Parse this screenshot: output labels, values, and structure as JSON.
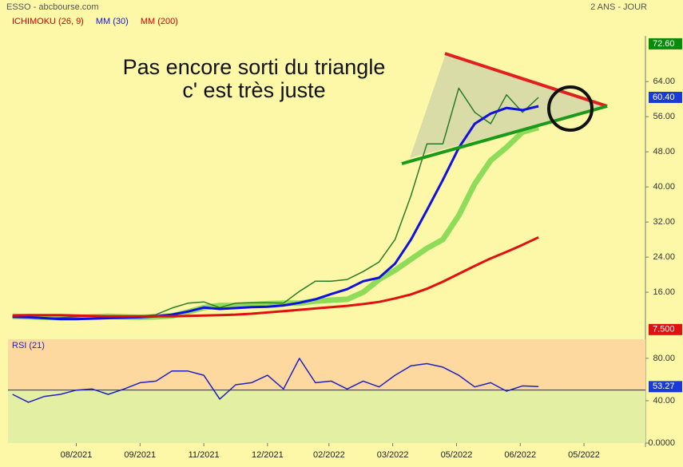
{
  "header": {
    "source": "ESSO - abcbourse.com",
    "period": "2 ANS - JOUR"
  },
  "annotations": [
    "Pas encore sorti du triangle",
    "c' est très juste"
  ],
  "chart_data": [
    {
      "type": "line",
      "x": [
        2,
        9,
        16,
        23,
        30,
        37,
        44,
        51,
        58,
        65,
        72,
        79,
        86,
        93,
        100,
        107,
        114,
        121,
        128,
        135,
        142,
        149,
        156,
        163,
        170,
        177,
        184,
        191,
        198,
        205,
        212,
        219,
        226,
        233
      ],
      "xlim": [
        0,
        280
      ],
      "ylim": [
        7.1,
        74.4
      ],
      "yticks": [
        {
          "value": 16,
          "label": "16.00"
        },
        {
          "value": 24,
          "label": "24.00"
        },
        {
          "value": 32,
          "label": "32.00"
        },
        {
          "value": 40,
          "label": "40.00"
        },
        {
          "value": 48,
          "label": "48.00"
        },
        {
          "value": 56,
          "label": "56.00"
        },
        {
          "value": 64,
          "label": "64.00"
        }
      ],
      "series": [
        {
          "name": "ICHIMOKU (26, 9)",
          "color": "#8fdc5a",
          "legend_color": "#d00000",
          "width": 7,
          "values": [
            10.5,
            10.4,
            10.3,
            10.2,
            10.2,
            10.4,
            10.5,
            10.4,
            10.3,
            10.4,
            10.6,
            11.5,
            12.5,
            13.0,
            13.0,
            13.2,
            13.4,
            13.5,
            13.5,
            14.0,
            14.2,
            14.4,
            16.0,
            18.9,
            21.0,
            23.5,
            26.0,
            28.0,
            33.5,
            40.7,
            46.0,
            49.0,
            52.5,
            53.5
          ]
        },
        {
          "color": "#2a7a2a",
          "width": 1.5,
          "values": [
            10.4,
            10.2,
            10.0,
            10.2,
            10.4,
            10.7,
            10.4,
            10.2,
            10.5,
            10.9,
            12.4,
            13.5,
            13.8,
            12.5,
            13.5,
            13.6,
            13.6,
            13.5,
            16.2,
            18.5,
            18.5,
            18.9,
            20.7,
            22.9,
            28.0,
            38.0,
            49.8,
            49.8,
            62.5,
            57.0,
            54.4,
            61.0,
            57.0,
            60.4
          ]
        },
        {
          "name": "MM (30)",
          "color": "#1010e0",
          "legend_color": "#1010e0",
          "width": 3,
          "values": [
            10.4,
            10.3,
            10.1,
            9.9,
            9.9,
            10.0,
            10.1,
            10.2,
            10.3,
            10.5,
            10.9,
            11.6,
            12.5,
            12.2,
            12.4,
            12.6,
            12.7,
            13.0,
            13.6,
            14.4,
            15.6,
            16.7,
            18.5,
            19.3,
            22.5,
            28.0,
            34.7,
            41.6,
            48.9,
            54.4,
            56.7,
            58.0,
            57.5,
            58.4
          ]
        },
        {
          "name": "MM (200)",
          "color": "#e01010",
          "legend_color": "#d00000",
          "width": 3,
          "values": [
            10.7,
            10.8,
            10.8,
            10.8,
            10.7,
            10.6,
            10.5,
            10.5,
            10.5,
            10.5,
            10.5,
            10.6,
            10.7,
            10.8,
            10.9,
            11.1,
            11.4,
            11.7,
            12.0,
            12.3,
            12.6,
            12.9,
            13.3,
            13.8,
            14.6,
            15.5,
            16.8,
            18.4,
            20.2,
            22.0,
            23.7,
            25.2,
            26.8,
            28.5
          ]
        }
      ],
      "markers": [
        {
          "value": 72.6,
          "label": "72.60",
          "color": "#0a8a0a"
        },
        {
          "value": 60.4,
          "label": "60.40",
          "color": "#1a3ad8"
        },
        {
          "value": 7.5,
          "label": "7.500",
          "color": "#e01010"
        }
      ]
    },
    {
      "type": "line",
      "x": [
        2,
        9,
        16,
        23,
        30,
        37,
        44,
        51,
        58,
        65,
        72,
        79,
        86,
        93,
        100,
        107,
        114,
        121,
        128,
        135,
        142,
        149,
        156,
        163,
        170,
        177,
        184,
        191,
        198,
        205,
        212,
        219,
        226,
        233
      ],
      "xlim": [
        0,
        280
      ],
      "xticks": [
        {
          "value": 30,
          "label": "08/2021"
        },
        {
          "value": 58,
          "label": "09/2021"
        },
        {
          "value": 86,
          "label": "11/2021"
        },
        {
          "value": 114,
          "label": "12/2021"
        },
        {
          "value": 141,
          "label": "02/2022"
        },
        {
          "value": 169,
          "label": "03/2022"
        },
        {
          "value": 197,
          "label": "05/2022"
        },
        {
          "value": 225,
          "label": "06/2022"
        },
        {
          "value": 253,
          "label": "05/2022"
        }
      ],
      "ylim": [
        0,
        98
      ],
      "yticks": [
        {
          "value": 0,
          "label": "0.0000"
        },
        {
          "value": 40,
          "label": "40.00"
        },
        {
          "value": 80,
          "label": "80.00"
        }
      ],
      "reference": 50,
      "series": [
        {
          "name": "RSI (21)",
          "color": "#2020c0",
          "legend_color": "#2020c0",
          "width": 1.5,
          "values": [
            46,
            38.5,
            44,
            46,
            50,
            51,
            46,
            51,
            57,
            58.5,
            68,
            68,
            64,
            41.5,
            55,
            57,
            64,
            51,
            80,
            57,
            58.5,
            51,
            58.5,
            53,
            64,
            73,
            75,
            71.7,
            64,
            53,
            57,
            49,
            54,
            53.27
          ]
        }
      ],
      "markers": [
        {
          "value": 53.27,
          "label": "53.27",
          "color": "#1a3ad8"
        }
      ]
    }
  ]
}
